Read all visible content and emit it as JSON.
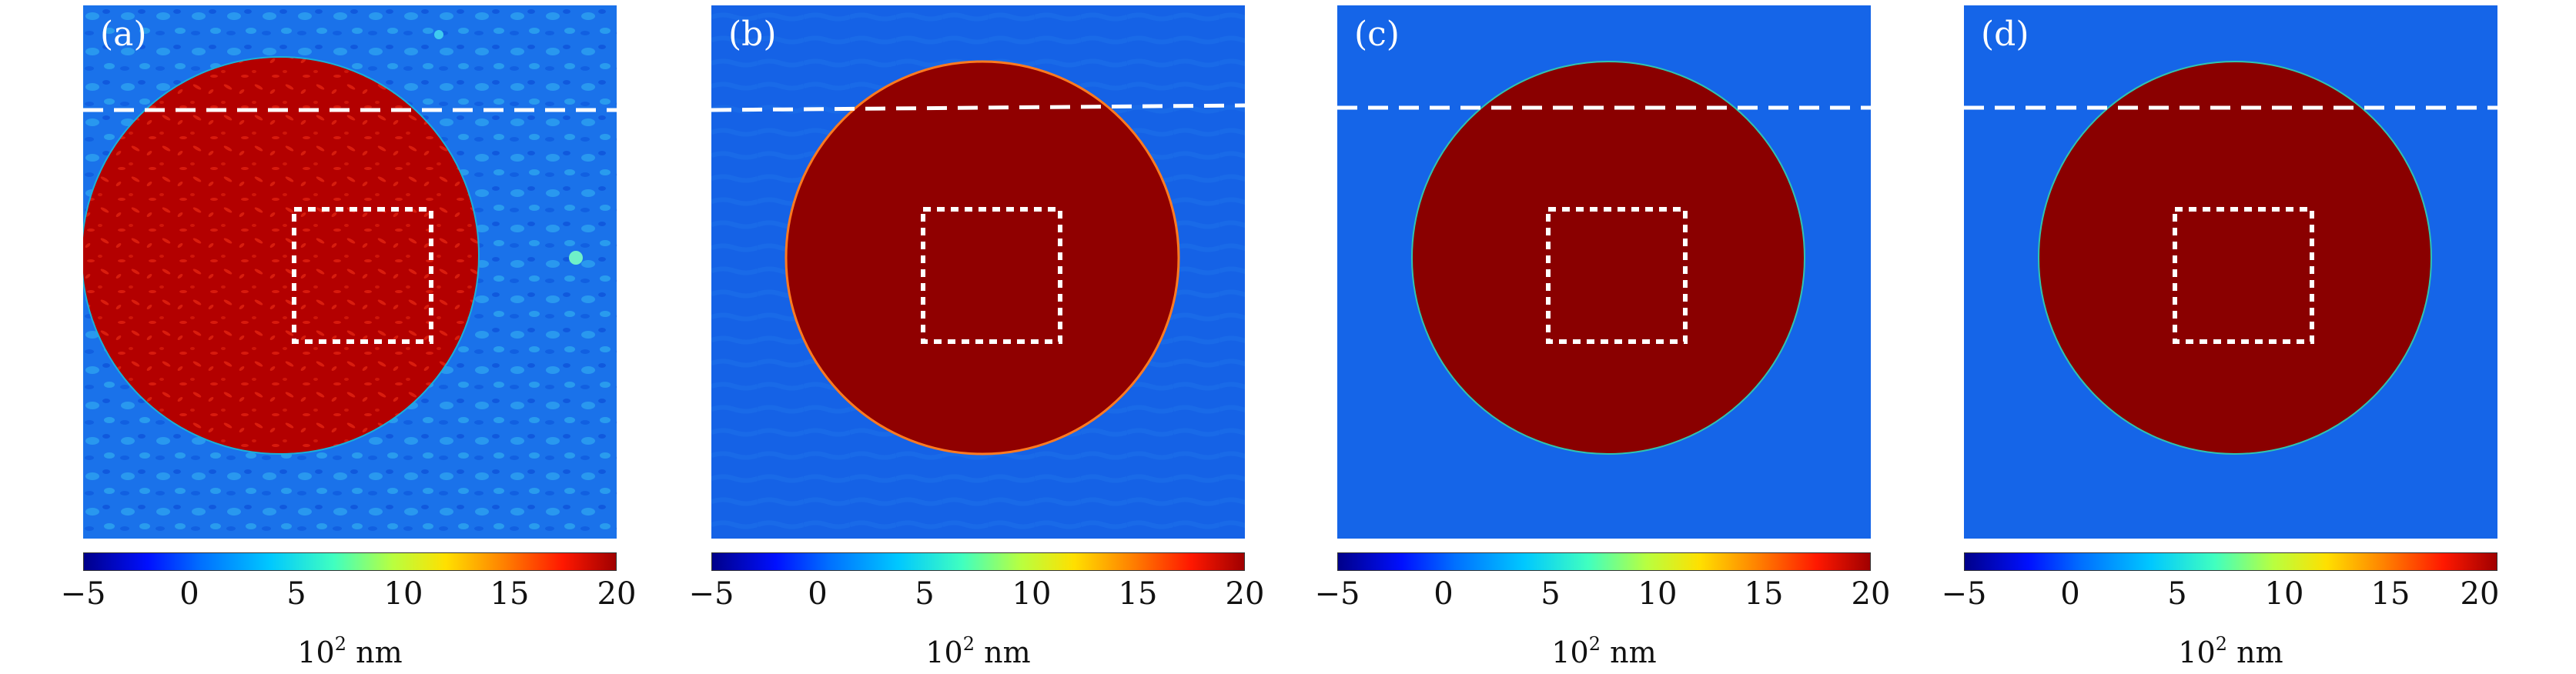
{
  "panels": [
    {
      "label": "(a)"
    },
    {
      "label": "(b)"
    },
    {
      "label": "(c)"
    },
    {
      "label": "(d)"
    }
  ],
  "colorbar": {
    "ticks": [
      "−5",
      "0",
      "5",
      "10",
      "15",
      "20"
    ],
    "unit_base": "10",
    "unit_exp": "2",
    "unit_name": "nm",
    "colors": [
      "#00008a",
      "#0010ff",
      "#0070ff",
      "#00c8ff",
      "#40ffc0",
      "#b8ff40",
      "#ffe000",
      "#ff8000",
      "#ff1800",
      "#a00000"
    ]
  },
  "colors": {
    "background_blue": "#1565e8",
    "disk_red": "#8c0000",
    "marker_white": "#ffffff"
  }
}
